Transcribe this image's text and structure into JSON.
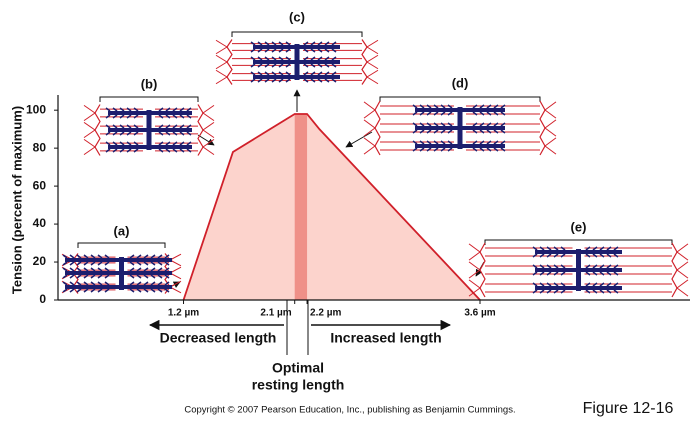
{
  "chart_data": {
    "type": "area",
    "ylabel": "Tension (percent of maximum)",
    "x": [
      1.2,
      1.6,
      2.1,
      2.2,
      2.3,
      3.6
    ],
    "values": [
      0,
      78,
      98,
      98,
      90,
      0
    ],
    "color": "#fcd3cc",
    "line_color": "#d0202a",
    "optimal_color": "#ef9088",
    "xlim": [
      0.2,
      5.3
    ],
    "ylim": [
      0,
      108
    ],
    "yticks": [
      0,
      20,
      40,
      60,
      80,
      100
    ],
    "xticks": [
      {
        "value": 1.2,
        "label": "1.2 µm"
      },
      {
        "value": 2.1,
        "label": "2.1 µm"
      },
      {
        "value": 2.2,
        "label": "2.2 µm"
      },
      {
        "value": 3.6,
        "label": "3.6 µm"
      }
    ],
    "annotations": {
      "decreased": "Decreased length",
      "increased": "Increased length",
      "optimal": [
        "Optimal",
        "resting length"
      ]
    },
    "panels": [
      "(a)",
      "(b)",
      "(c)",
      "(d)",
      "(e)"
    ],
    "copyright": "Copyright © 2007 Pearson Education, Inc., publishing as Benjamin Cummings.",
    "figure": "Figure 12-16"
  }
}
